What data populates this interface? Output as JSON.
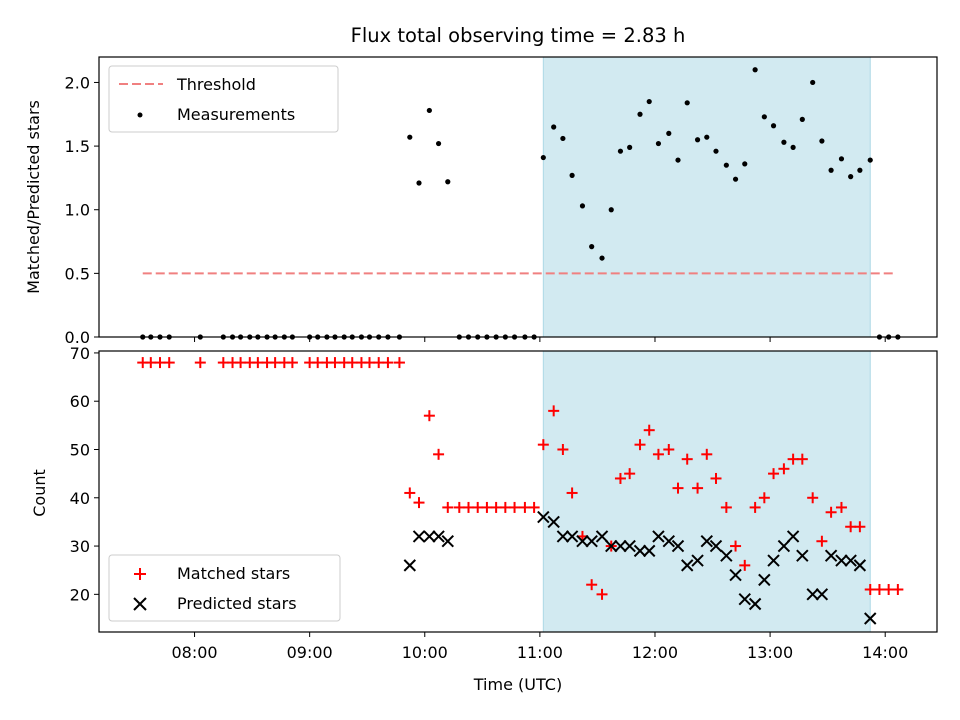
{
  "chart_data": [
    {
      "type": "scatter",
      "title": "Flux total observing time = 2.83 h",
      "ylabel": "Matched/Predicted stars",
      "xlabel": "",
      "xlim": [
        7.17,
        14.45
      ],
      "ylim": [
        0,
        2.2
      ],
      "yticks": [
        0.0,
        0.5,
        1.0,
        1.5,
        2.0
      ],
      "ytick_labels": [
        "0.0",
        "0.5",
        "1.0",
        "1.5",
        "2.0"
      ],
      "xticks": [
        8,
        9,
        10,
        11,
        12,
        13,
        14
      ],
      "shaded_span": [
        11.03,
        13.87
      ],
      "legend": {
        "location": "upper left",
        "entries": [
          "Threshold",
          "Measurements"
        ]
      },
      "series": [
        {
          "name": "Threshold",
          "style": "dashed-line",
          "color": "#f08080",
          "x": [
            7.55,
            14.07
          ],
          "y": [
            0.5,
            0.5
          ]
        },
        {
          "name": "Measurements",
          "style": "dot",
          "color": "#000000",
          "x": [
            7.55,
            7.62,
            7.7,
            7.78,
            8.05,
            8.25,
            8.33,
            8.4,
            8.48,
            8.55,
            8.63,
            8.7,
            8.78,
            8.85,
            9.0,
            9.07,
            9.15,
            9.22,
            9.3,
            9.37,
            9.45,
            9.52,
            9.6,
            9.68,
            9.78,
            9.87,
            9.95,
            10.04,
            10.12,
            10.2,
            10.3,
            10.38,
            10.46,
            10.54,
            10.62,
            10.7,
            10.78,
            10.87,
            10.95,
            11.03,
            11.12,
            11.2,
            11.28,
            11.37,
            11.45,
            11.54,
            11.62,
            11.7,
            11.78,
            11.87,
            11.95,
            12.03,
            12.12,
            12.2,
            12.28,
            12.37,
            12.45,
            12.53,
            12.62,
            12.7,
            12.78,
            12.87,
            12.95,
            13.03,
            13.12,
            13.2,
            13.28,
            13.37,
            13.45,
            13.53,
            13.62,
            13.7,
            13.78,
            13.87,
            13.95,
            14.03,
            14.11
          ],
          "y": [
            0,
            0,
            0,
            0,
            0,
            0,
            0,
            0,
            0,
            0,
            0,
            0,
            0,
            0,
            0,
            0,
            0,
            0,
            0,
            0,
            0,
            0,
            0,
            0,
            0,
            1.57,
            1.21,
            1.78,
            1.52,
            1.22,
            0,
            0,
            0,
            0,
            0,
            0,
            0,
            0,
            0,
            1.41,
            1.65,
            1.56,
            1.27,
            1.03,
            0.71,
            0.62,
            1.0,
            1.46,
            1.49,
            1.75,
            1.85,
            1.52,
            1.6,
            1.39,
            1.84,
            1.55,
            1.57,
            1.46,
            1.35,
            1.24,
            1.36,
            2.1,
            1.73,
            1.66,
            1.53,
            1.49,
            1.71,
            2.0,
            1.54,
            1.31,
            1.4,
            1.26,
            1.31,
            1.39,
            0,
            0,
            0
          ]
        }
      ]
    },
    {
      "type": "scatter",
      "title": "",
      "xlabel": "Time (UTC)",
      "ylabel": "Count",
      "xlim": [
        7.17,
        14.45
      ],
      "ylim": [
        12.2,
        70.4
      ],
      "yticks": [
        20,
        30,
        40,
        50,
        60,
        70
      ],
      "ytick_labels": [
        "20",
        "30",
        "40",
        "50",
        "60",
        "70"
      ],
      "xticks": [
        8,
        9,
        10,
        11,
        12,
        13,
        14
      ],
      "xtick_labels": [
        "08:00",
        "09:00",
        "10:00",
        "11:00",
        "12:00",
        "13:00",
        "14:00"
      ],
      "shaded_span": [
        11.03,
        13.87
      ],
      "legend": {
        "location": "lower left",
        "entries": [
          "Matched stars",
          "Predicted stars"
        ]
      },
      "series": [
        {
          "name": "Matched stars",
          "marker": "plus",
          "color": "#ff0000",
          "x": [
            7.55,
            7.62,
            7.7,
            7.78,
            8.05,
            8.25,
            8.33,
            8.4,
            8.48,
            8.55,
            8.63,
            8.7,
            8.78,
            8.85,
            9.0,
            9.07,
            9.15,
            9.22,
            9.3,
            9.37,
            9.45,
            9.52,
            9.6,
            9.68,
            9.78,
            9.87,
            9.95,
            10.04,
            10.12,
            10.2,
            10.3,
            10.38,
            10.46,
            10.54,
            10.62,
            10.7,
            10.78,
            10.87,
            10.95,
            11.03,
            11.12,
            11.2,
            11.28,
            11.37,
            11.45,
            11.54,
            11.62,
            11.7,
            11.78,
            11.87,
            11.95,
            12.03,
            12.12,
            12.2,
            12.28,
            12.37,
            12.45,
            12.53,
            12.62,
            12.7,
            12.78,
            12.87,
            12.95,
            13.03,
            13.12,
            13.2,
            13.28,
            13.37,
            13.45,
            13.53,
            13.62,
            13.7,
            13.78,
            13.87,
            13.95,
            14.03,
            14.11
          ],
          "y": [
            68,
            68,
            68,
            68,
            68,
            68,
            68,
            68,
            68,
            68,
            68,
            68,
            68,
            68,
            68,
            68,
            68,
            68,
            68,
            68,
            68,
            68,
            68,
            68,
            68,
            41,
            39,
            57,
            49,
            38,
            38,
            38,
            38,
            38,
            38,
            38,
            38,
            38,
            38,
            51,
            58,
            50,
            41,
            32,
            22,
            20,
            30,
            44,
            45,
            51,
            54,
            49,
            50,
            42,
            48,
            42,
            49,
            44,
            38,
            30,
            26,
            38,
            40,
            45,
            46,
            48,
            48,
            40,
            31,
            37,
            38,
            34,
            34,
            21,
            21,
            21,
            21
          ]
        },
        {
          "name": "Predicted stars",
          "marker": "x",
          "color": "#000000",
          "x": [
            9.87,
            9.95,
            10.04,
            10.12,
            10.2,
            11.03,
            11.12,
            11.2,
            11.28,
            11.37,
            11.45,
            11.54,
            11.62,
            11.7,
            11.78,
            11.87,
            11.95,
            12.03,
            12.12,
            12.2,
            12.28,
            12.37,
            12.45,
            12.53,
            12.62,
            12.7,
            12.78,
            12.87,
            12.95,
            13.03,
            13.12,
            13.2,
            13.28,
            13.37,
            13.45,
            13.53,
            13.62,
            13.7,
            13.78,
            13.87
          ],
          "y": [
            26,
            32,
            32,
            32,
            31,
            36,
            35,
            32,
            32,
            31,
            31,
            32,
            30,
            30,
            30,
            29,
            29,
            32,
            31,
            30,
            26,
            27,
            31,
            30,
            28,
            24,
            19,
            18,
            23,
            27,
            30,
            32,
            28,
            20,
            20,
            28,
            27,
            27,
            26,
            15
          ]
        }
      ]
    }
  ],
  "colors": {
    "shaded_span": "#add8e6",
    "threshold": "#f08080",
    "measurements": "#000000",
    "matched": "#ff0000",
    "predicted": "#000000"
  }
}
